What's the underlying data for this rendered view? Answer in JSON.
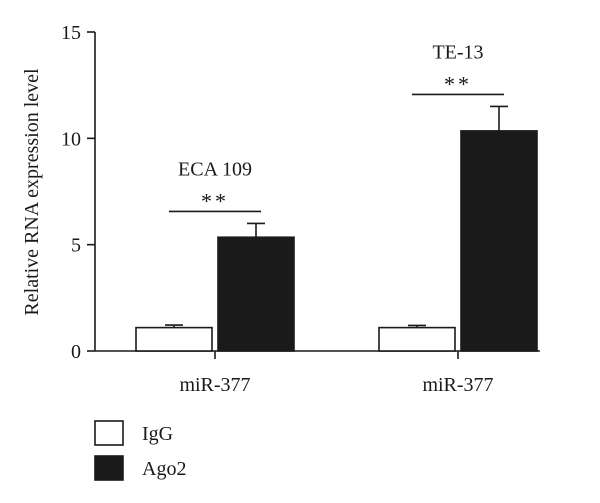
{
  "chart_data": {
    "type": "bar",
    "ylabel": "Relative RNA expression level",
    "ylim": [
      0,
      15
    ],
    "yticks": [
      0,
      5,
      10,
      15
    ],
    "groups": [
      {
        "category": "miR-377",
        "cell_line": "ECA 109",
        "significance": "**",
        "values": {
          "IgG": 1.1,
          "Ago2": 5.35
        },
        "errors": {
          "IgG": 0.12,
          "Ago2": 0.65
        }
      },
      {
        "category": "miR-377",
        "cell_line": "TE-13",
        "significance": "**",
        "values": {
          "IgG": 1.1,
          "Ago2": 10.35
        },
        "errors": {
          "IgG": 0.1,
          "Ago2": 1.15
        }
      }
    ],
    "series": [
      {
        "name": "IgG",
        "color": "#ffffff",
        "values": [
          1.1,
          1.1
        ]
      },
      {
        "name": "Ago2",
        "color": "#1a1a1a",
        "values": [
          5.35,
          10.35
        ]
      }
    ],
    "legend": {
      "placement": "bottom-left",
      "items": [
        "IgG",
        "Ago2"
      ]
    },
    "grid": false
  }
}
